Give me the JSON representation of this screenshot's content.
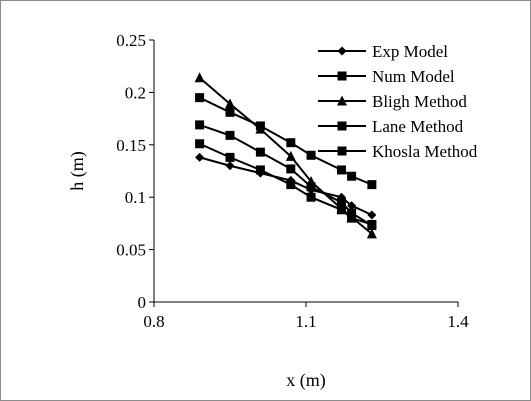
{
  "chart_data": {
    "type": "line",
    "title": "",
    "xlabel": "x (m)",
    "ylabel": "h (m)",
    "xlim": [
      0.8,
      1.4
    ],
    "ylim": [
      0,
      0.25
    ],
    "x_ticks": [
      "0.8",
      "1.1",
      "1.4"
    ],
    "y_ticks": [
      "0",
      "0.05",
      "0.1",
      "0.15",
      "0.2",
      "0.25"
    ],
    "grid": false,
    "legend_position": "top-right",
    "series": [
      {
        "name": "Exp Model",
        "marker": "diamond",
        "color": "#000000",
        "x": [
          0.89,
          0.95,
          1.01,
          1.07,
          1.11,
          1.17,
          1.19,
          1.23
        ],
        "y": [
          0.138,
          0.13,
          0.123,
          0.116,
          0.107,
          0.1,
          0.092,
          0.083
        ]
      },
      {
        "name": "Num Model",
        "marker": "square",
        "color": "#000000",
        "x": [
          0.89,
          0.95,
          1.01,
          1.07,
          1.11,
          1.17,
          1.19,
          1.23
        ],
        "y": [
          0.151,
          0.138,
          0.126,
          0.112,
          0.1,
          0.088,
          0.08,
          0.074
        ]
      },
      {
        "name": "Bligh Method",
        "marker": "triangle",
        "color": "#000000",
        "x": [
          0.89,
          0.95,
          1.01,
          1.07,
          1.11,
          1.17,
          1.19,
          1.23
        ],
        "y": [
          0.214,
          0.189,
          0.165,
          0.139,
          0.115,
          0.089,
          0.081,
          0.065
        ]
      },
      {
        "name": "Lane Method",
        "marker": "square",
        "color": "#000000",
        "x": [
          0.89,
          0.95,
          1.01,
          1.07,
          1.11,
          1.17,
          1.19,
          1.23
        ],
        "y": [
          0.169,
          0.159,
          0.143,
          0.127,
          0.11,
          0.095,
          0.085,
          0.073
        ]
      },
      {
        "name": "Khosla Method",
        "marker": "square",
        "color": "#000000",
        "x": [
          0.89,
          0.95,
          1.01,
          1.07,
          1.11,
          1.17,
          1.19,
          1.23
        ],
        "y": [
          0.195,
          0.181,
          0.168,
          0.152,
          0.14,
          0.126,
          0.12,
          0.112
        ]
      }
    ]
  }
}
